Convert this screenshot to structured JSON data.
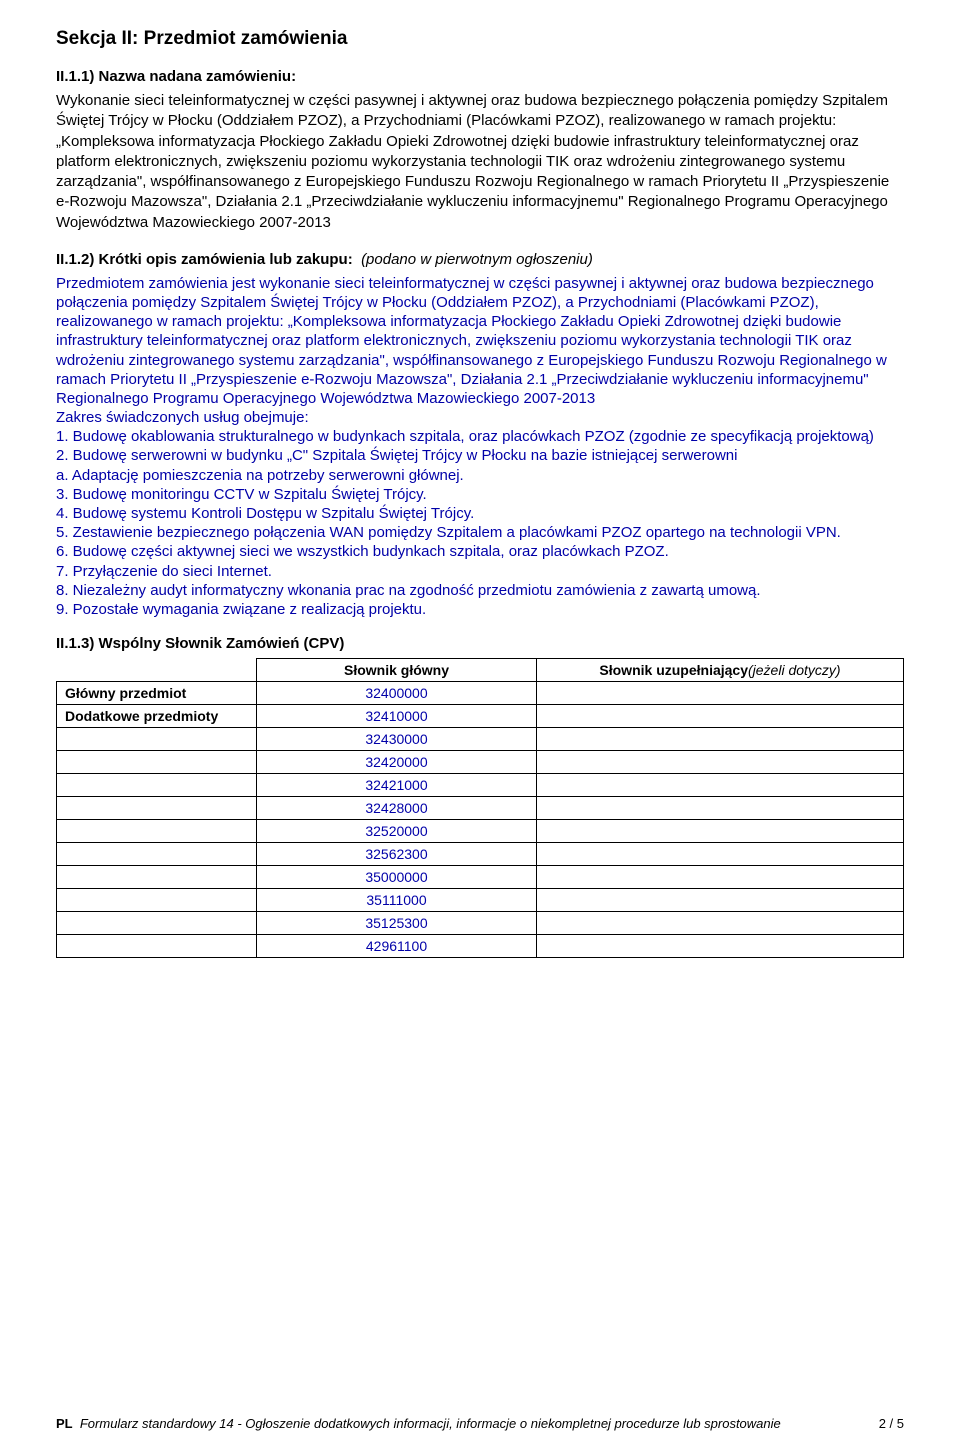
{
  "section": {
    "title": "Sekcja II: Przedmiot zamówienia",
    "ii11_label": "II.1.1) Nazwa nadana zamówieniu:",
    "ii11_text": "Wykonanie sieci teleinformatycznej w części pasywnej i aktywnej oraz budowa bezpiecznego połączenia pomiędzy Szpitalem Świętej Trójcy w Płocku (Oddziałem PZOZ), a Przychodniami (Placówkami PZOZ), realizowanego w ramach projektu: „Kompleksowa informatyzacja Płockiego Zakładu Opieki Zdrowotnej dzięki budowie infrastruktury teleinformatycznej oraz platform elektronicznych, zwiększeniu poziomu wykorzystania technologii TIK oraz wdrożeniu zintegrowanego systemu zarządzania\", współfinansowanego z Europejskiego Funduszu Rozwoju Regionalnego w ramach Priorytetu II „Przyspieszenie e-Rozwoju Mazowsza\", Działania 2.1 „Przeciwdziałanie wykluczeniu informacyjnemu\" Regionalnego Programu Operacyjnego Województwa Mazowieckiego 2007-2013",
    "ii12_label": "II.1.2) Krótki opis zamówienia lub zakupu:",
    "ii12_note": "(podano w pierwotnym ogłoszeniu)",
    "ii12_text": "Przedmiotem zamówienia jest wykonanie sieci teleinformatycznej w części pasywnej i aktywnej oraz budowa bezpiecznego połączenia pomiędzy Szpitalem Świętej Trójcy w Płocku (Oddziałem PZOZ), a Przychodniami (Placówkami PZOZ), realizowanego w ramach projektu: „Kompleksowa informatyzacja Płockiego Zakładu Opieki Zdrowotnej dzięki budowie infrastruktury teleinformatycznej oraz platform elektronicznych, zwiększeniu poziomu wykorzystania technologii TIK oraz wdrożeniu zintegrowanego systemu zarządzania\", współfinansowanego z Europejskiego Funduszu Rozwoju Regionalnego w ramach Priorytetu II „Przyspieszenie e-Rozwoju Mazowsza\", Działania 2.1 „Przeciwdziałanie wykluczeniu informacyjnemu\" Regionalnego Programu Operacyjnego Województwa Mazowieckiego 2007-2013\nZakres świadczonych usług obejmuje:\n1. Budowę okablowania strukturalnego w budynkach szpitala, oraz placówkach PZOZ (zgodnie ze specyfikacją projektową)\n2. Budowę serwerowni w budynku „C\" Szpitala Świętej Trójcy w Płocku na bazie istniejącej serwerowni\na. Adaptację pomieszczenia na potrzeby serwerowni głównej.\n3. Budowę monitoringu CCTV w Szpitalu Świętej Trójcy.\n4. Budowę systemu Kontroli Dostępu w Szpitalu Świętej Trójcy.\n5. Zestawienie bezpiecznego połączenia WAN pomiędzy Szpitalem a placówkami PZOZ opartego na technologii VPN.\n6. Budowę części aktywnej sieci we wszystkich budynkach szpitala, oraz placówkach PZOZ.\n7. Przyłączenie do sieci Internet.\n8. Niezależny audyt informatyczny wkonania prac na zgodność przedmiotu zamówienia z zawartą umową.\n9. Pozostałe wymagania związane z realizacją projektu.",
    "ii13_label": "II.1.3) Wspólny Słownik Zamówień (CPV)"
  },
  "cpv_table": {
    "header_main": "Słownik główny",
    "header_supp_prefix": "Słownik uzupełniający",
    "header_supp_note": "(jeżeli dotyczy)",
    "main_subject_label": "Główny przedmiot",
    "additional_label": "Dodatkowe przedmioty",
    "main_code": "32400000",
    "additional_codes": [
      "32410000",
      "32430000",
      "32420000",
      "32421000",
      "32428000",
      "32520000",
      "32562300",
      "35000000",
      "35111000",
      "35125300",
      "42961100"
    ]
  },
  "footer": {
    "pl": "PL",
    "title": "Formularz standardowy 14 - Ogłoszenie dodatkowych informacji, informacje o niekompletnej procedurze lub sprostowanie",
    "page": "2 / 5"
  }
}
